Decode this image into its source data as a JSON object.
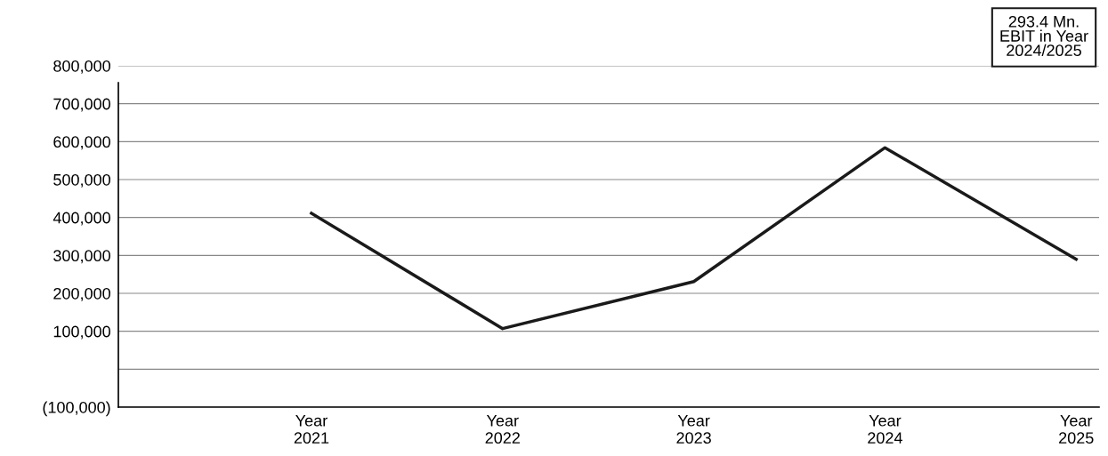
{
  "chart_data": {
    "type": "line",
    "categories": [
      "Year\n2021",
      "Year\n2022",
      "Year\n2023",
      "Year\n2024",
      "Year\n2025"
    ],
    "series": [
      {
        "color": "#1a1a1a",
        "values": [
          411000,
          107000,
          231000,
          584000,
          290000
        ]
      }
    ],
    "ylim": [
      -100000,
      800000
    ],
    "yticks": [
      {
        "value": -100000,
        "label": "(100,000)"
      },
      {
        "value": 0,
        "label": null
      },
      {
        "value": 100000,
        "label": "100,000"
      },
      {
        "value": 200000,
        "label": "200,000"
      },
      {
        "value": 300000,
        "label": "300,000"
      },
      {
        "value": 400000,
        "label": "400,000"
      },
      {
        "value": 500000,
        "label": "500,000"
      },
      {
        "value": 600000,
        "label": "600,000"
      },
      {
        "value": 700000,
        "label": "700,000"
      },
      {
        "value": 800000,
        "label": "800,000"
      }
    ],
    "grid": "y",
    "marker": "none",
    "line_style": "solid",
    "annotations": [
      "293.4 Mn.\nEBIT in Year\n2024/2025"
    ]
  }
}
